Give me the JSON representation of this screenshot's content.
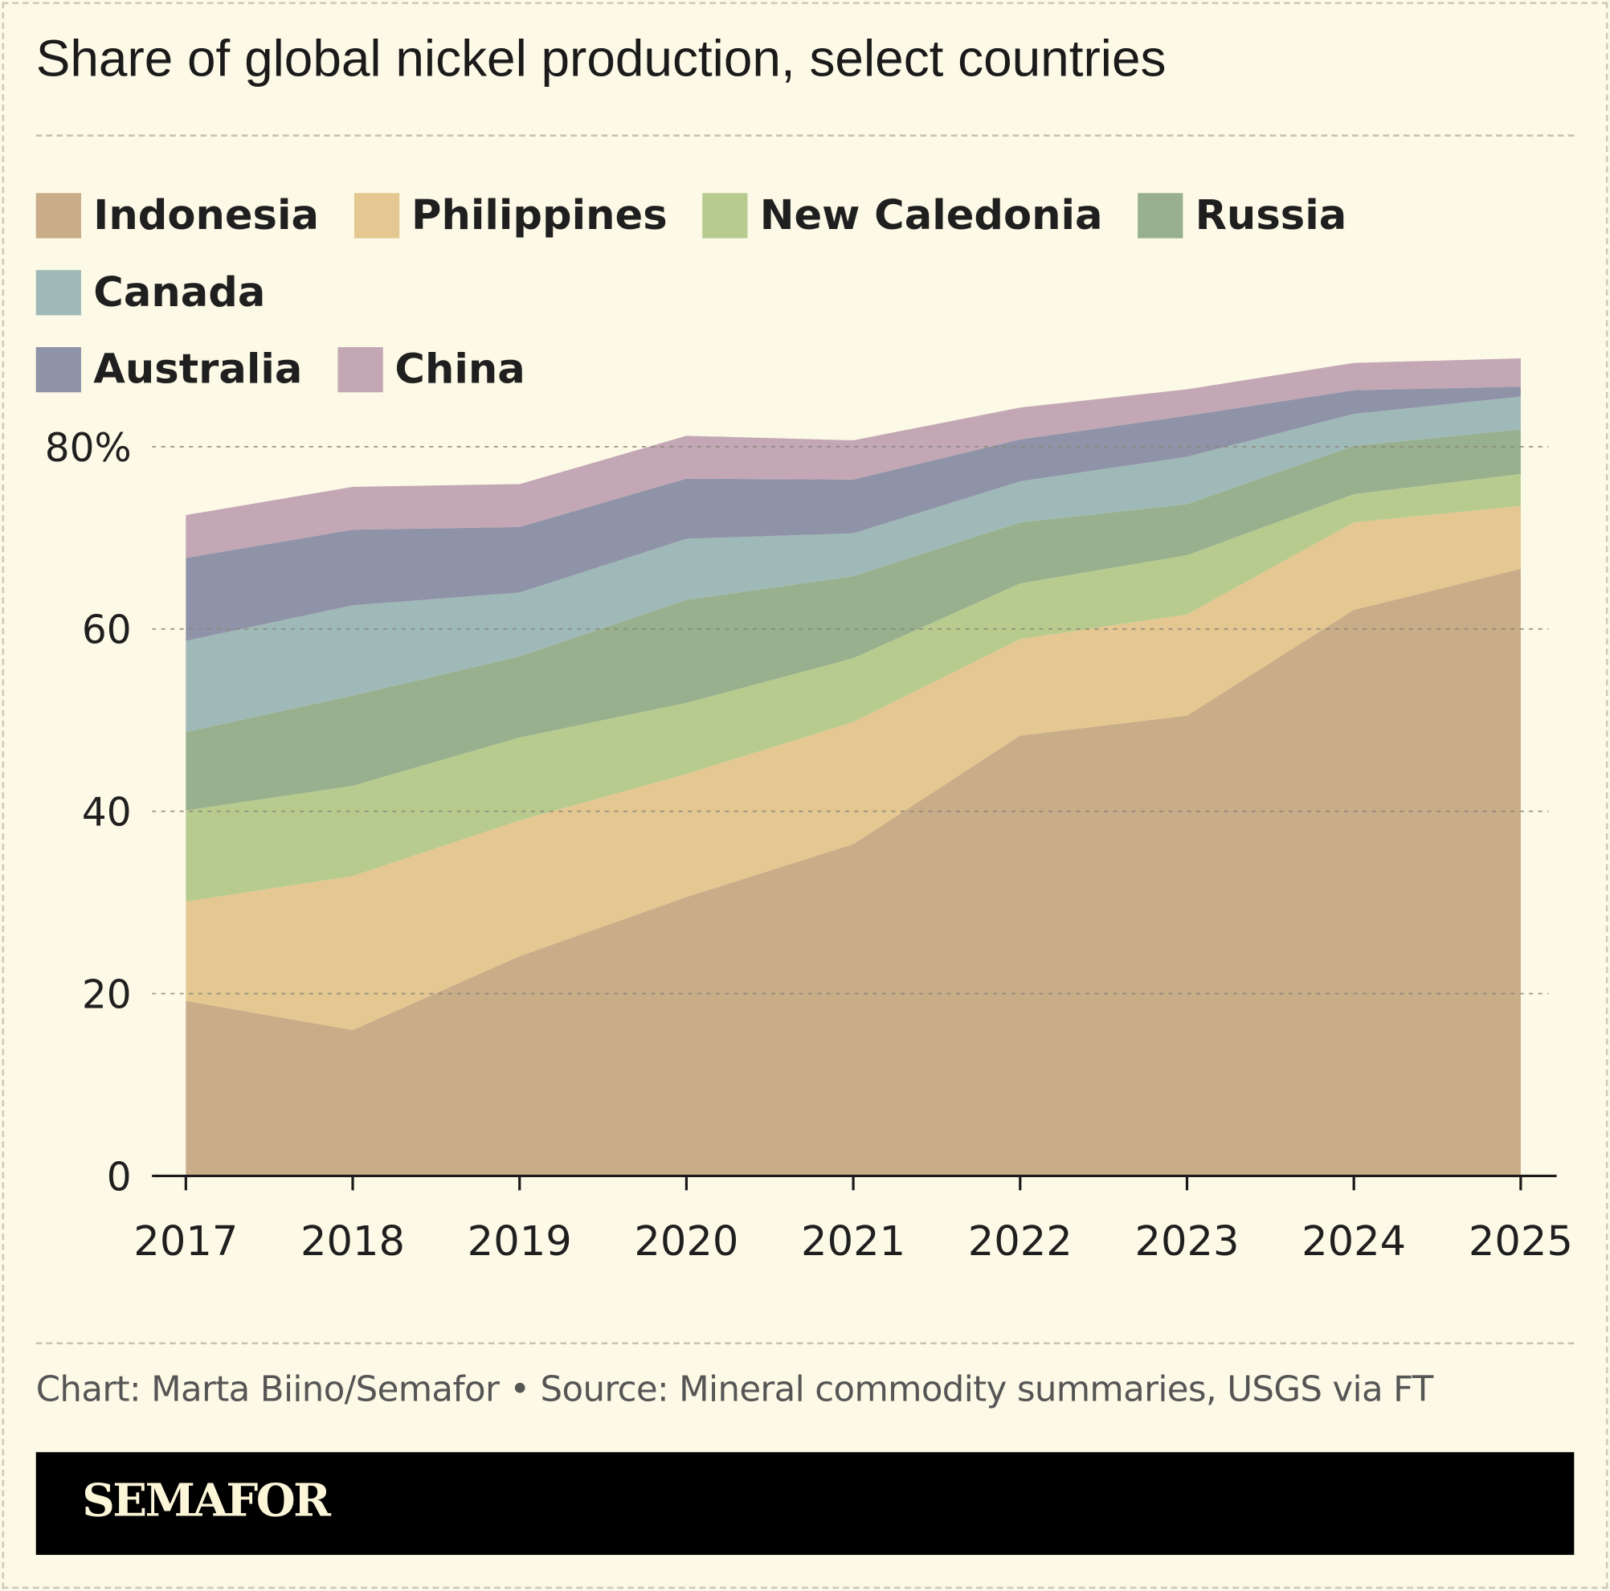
{
  "title": "Share of global nickel production, select countries",
  "footer": "Chart: Marta Biino/Semafor • Source: Mineral commodity summaries, USGS via FT",
  "brand": "SEMAFOR",
  "colors": {
    "background": "#fcf9e6"
  },
  "chart_data": {
    "type": "area",
    "stacked": true,
    "title": "Share of global nickel production, select countries",
    "x": [
      "2017",
      "2018",
      "2019",
      "2020",
      "2021",
      "2022",
      "2023",
      "2024",
      "2025"
    ],
    "ylim": [
      0,
      90
    ],
    "yticks": [
      0,
      20,
      40,
      60,
      80
    ],
    "ytick_labels": [
      "0",
      "20",
      "40",
      "60",
      "80%"
    ],
    "grid": true,
    "legend_placement": "top",
    "series": [
      {
        "name": "Indonesia",
        "color": "#c9ac88",
        "values": [
          19.2,
          16.0,
          24.1,
          30.6,
          36.4,
          48.3,
          50.5,
          62.1,
          66.6
        ]
      },
      {
        "name": "Philippines",
        "color": "#e4c791",
        "values": [
          10.9,
          16.9,
          14.9,
          13.5,
          13.4,
          10.6,
          11.1,
          9.6,
          6.9
        ]
      },
      {
        "name": "New Caledonia",
        "color": "#b8cb8f",
        "values": [
          10.0,
          9.9,
          9.1,
          7.8,
          7.0,
          6.1,
          6.5,
          3.1,
          3.5
        ]
      },
      {
        "name": "Russia",
        "color": "#98b08e",
        "values": [
          8.6,
          9.9,
          8.9,
          11.3,
          9.0,
          6.7,
          5.6,
          5.3,
          4.9
        ]
      },
      {
        "name": "Canada",
        "color": "#9fb9b8",
        "values": [
          10.0,
          9.9,
          7.0,
          6.7,
          4.7,
          4.5,
          5.2,
          3.5,
          3.6
        ]
      },
      {
        "name": "Australia",
        "color": "#8f93a8",
        "values": [
          9.1,
          8.3,
          7.2,
          6.6,
          5.9,
          4.6,
          4.5,
          2.6,
          1.1
        ]
      },
      {
        "name": "China",
        "color": "#c3a7b5",
        "values": [
          4.7,
          4.7,
          4.7,
          4.7,
          4.3,
          3.5,
          2.9,
          3.0,
          3.1
        ]
      }
    ]
  }
}
